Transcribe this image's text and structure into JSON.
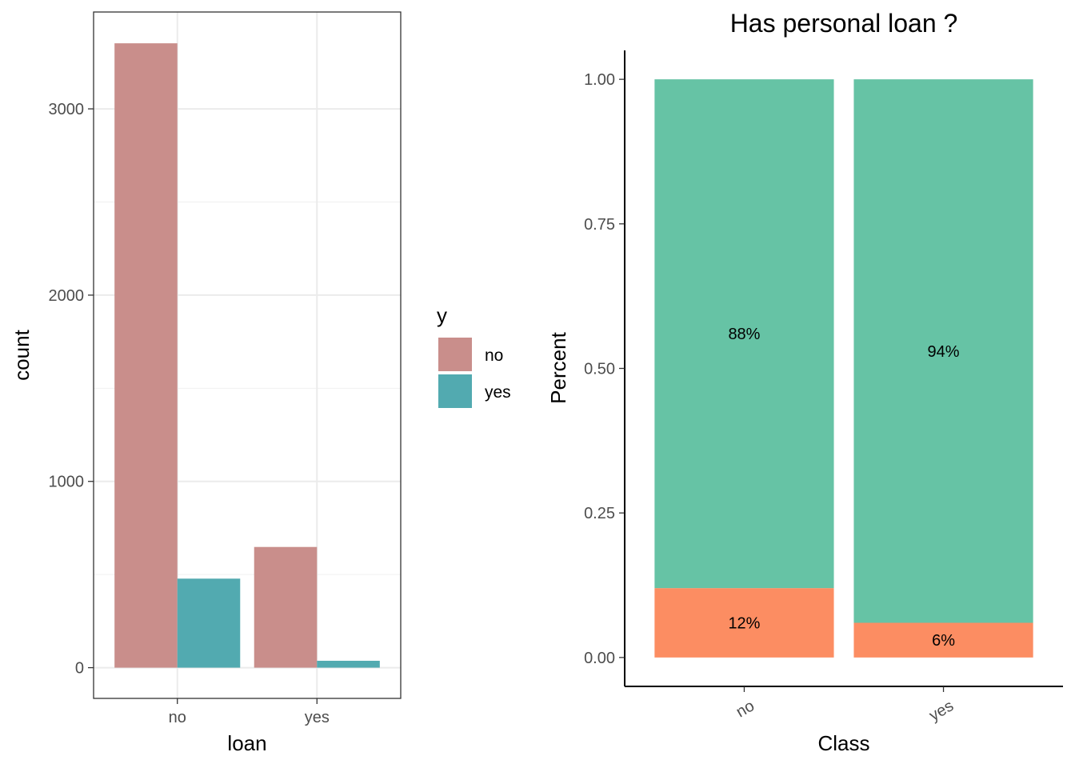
{
  "chart_data": [
    {
      "type": "bar",
      "position": "dodge",
      "categories": [
        "no",
        "yes"
      ],
      "series": [
        {
          "name": "no",
          "values": [
            3352,
            648
          ],
          "color": "#C98E8B"
        },
        {
          "name": "yes",
          "values": [
            478,
            37
          ],
          "color": "#52AAB0"
        }
      ],
      "title": "",
      "xlabel": "loan",
      "ylabel": "count",
      "ylim": [
        -165,
        3520
      ],
      "yticks": [
        0,
        1000,
        2000,
        3000
      ],
      "ytick_labels": [
        "0",
        "1000",
        "2000",
        "3000"
      ],
      "grid": true,
      "legend": {
        "title": "y",
        "placement": "right",
        "entries": [
          "no",
          "yes"
        ]
      }
    },
    {
      "type": "bar",
      "position": "stack",
      "categories": [
        "no",
        "yes"
      ],
      "series": [
        {
          "name": "no",
          "values": [
            0.88,
            0.94
          ],
          "labels": [
            "88%",
            "94%"
          ],
          "color": "#66C3A5"
        },
        {
          "name": "yes",
          "values": [
            0.12,
            0.06
          ],
          "labels": [
            "12%",
            "6%"
          ],
          "color": "#FC8D62"
        }
      ],
      "title": "Has personal loan ?",
      "xlabel": "Class",
      "ylabel": "Percent",
      "ylim": [
        -0.05,
        1.05
      ],
      "yticks": [
        0,
        0.25,
        0.5,
        0.75,
        1
      ],
      "ytick_labels": [
        "0.00",
        "0.25",
        "0.50",
        "0.75",
        "1.00"
      ],
      "grid": false,
      "legend": null
    }
  ]
}
